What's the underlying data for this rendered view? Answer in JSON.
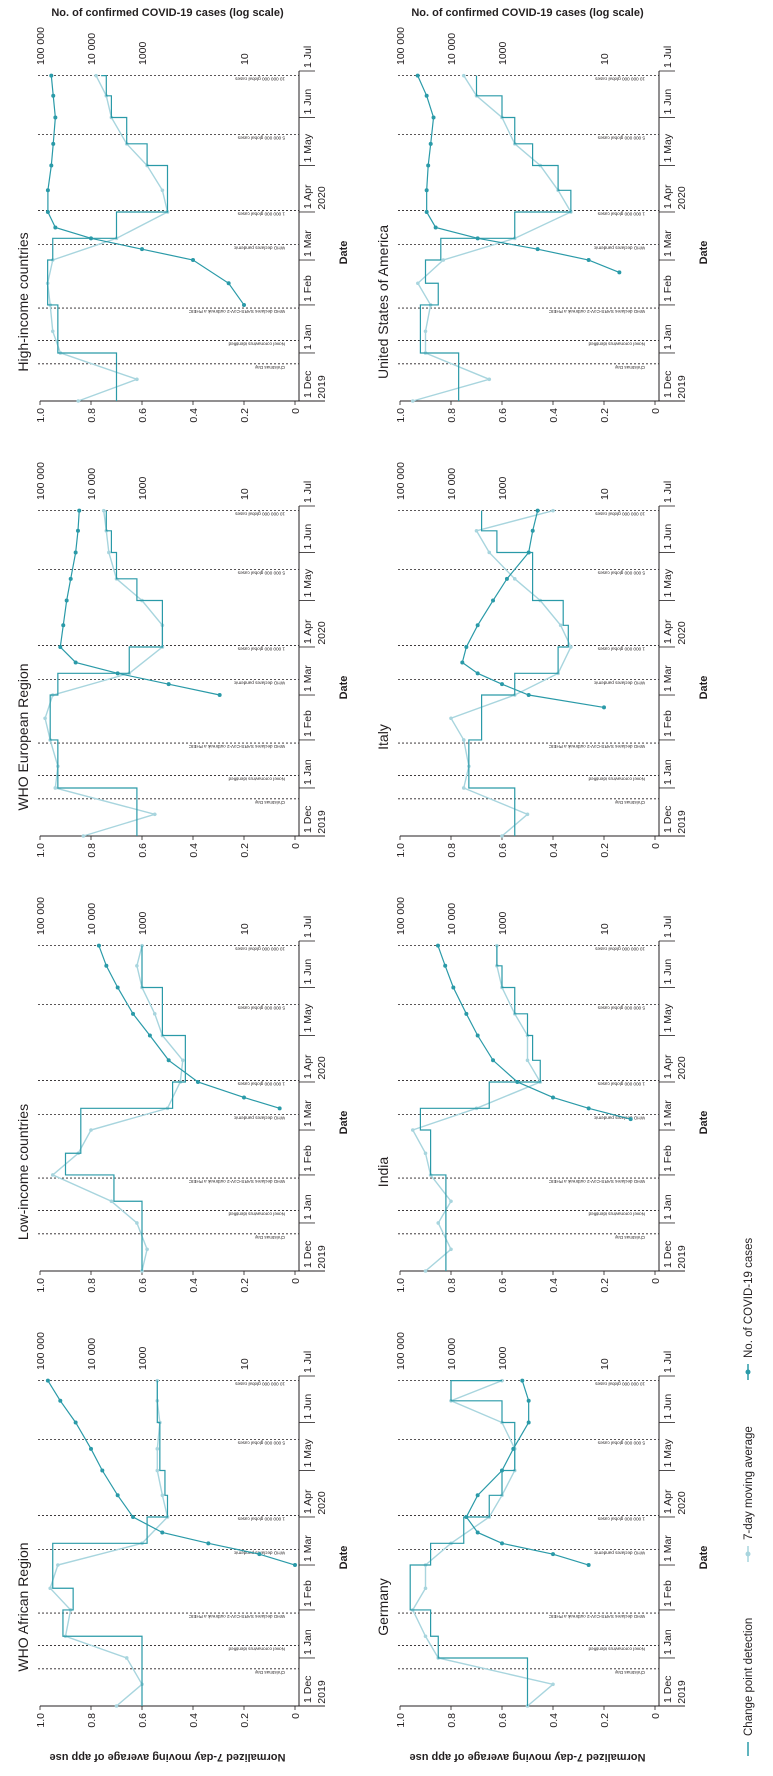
{
  "figure": {
    "ylabel_left": "Normalized 7-day moving average of app use",
    "ylabel_right": "No. of confirmed COVID-19 cases (log scale)",
    "xlabel": "Date",
    "x_ticks": [
      "1 Dec",
      "1 Jan",
      "1 Feb",
      "1 Mar",
      "1 Apr",
      "1 May",
      "1 Jun",
      "1 Jul"
    ],
    "year_labels": [
      "2019",
      "2020"
    ],
    "y_ticks_left": [
      "0",
      "0.2",
      "0.4",
      "0.6",
      "0.8",
      "1.0"
    ],
    "y_ticks_right": [
      "10",
      "1000",
      "10 000",
      "100 000"
    ],
    "events": [
      {
        "label": "Christmas Day",
        "date": "2019-12-25"
      },
      {
        "label": "Novel coronavirus identified",
        "date": "2020-01-09"
      },
      {
        "label": "WHO declares SARS-CoV-2 outbreak a PHEIC",
        "date": "2020-01-30"
      },
      {
        "label": "WHO declares pandemic",
        "date": "2020-03-11"
      },
      {
        "label": "1 000 000 global cases",
        "date": "2020-04-02"
      },
      {
        "label": "5 000 000 global cases",
        "date": "2020-05-21"
      },
      {
        "label": "10 000 000 global cases",
        "date": "2020-06-28"
      }
    ],
    "legend": [
      "Change point detection",
      "7-day moving average",
      "No. of COVID-19 cases"
    ],
    "colors": {
      "dark": "#2a9aa8",
      "light": "#a8d5de",
      "text": "#231f20"
    }
  },
  "chart_data": [
    {
      "type": "line",
      "title": "WHO African Region",
      "x": [
        "2019-12-01",
        "2019-12-15",
        "2020-01-01",
        "2020-01-15",
        "2020-02-01",
        "2020-02-15",
        "2020-03-01",
        "2020-03-15",
        "2020-04-01",
        "2020-04-15",
        "2020-05-01",
        "2020-05-15",
        "2020-06-01",
        "2020-06-15",
        "2020-06-28"
      ],
      "series": [
        {
          "name": "7-day moving average",
          "values": [
            0.7,
            0.6,
            0.66,
            0.9,
            0.88,
            0.96,
            0.93,
            0.6,
            0.5,
            0.52,
            0.54,
            0.54,
            0.53,
            0.54,
            0.54
          ]
        },
        {
          "name": "Change point detection",
          "values": [
            0.6,
            0.6,
            0.6,
            0.91,
            0.87,
            0.95,
            0.95,
            0.58,
            0.5,
            0.51,
            0.53,
            0.53,
            0.54,
            0.54,
            0.54
          ]
        },
        {
          "name": "No. of COVID-19 cases",
          "x": [
            "2020-03-01",
            "2020-03-08",
            "2020-03-15",
            "2020-03-22",
            "2020-04-01",
            "2020-04-15",
            "2020-05-01",
            "2020-05-15",
            "2020-06-01",
            "2020-06-15",
            "2020-06-28"
          ],
          "values": [
            1,
            5,
            50,
            400,
            1500,
            3000,
            6000,
            10000,
            20000,
            40000,
            70000
          ]
        }
      ]
    },
    {
      "type": "line",
      "title": "Low-income countries",
      "x": [
        "2019-12-01",
        "2019-12-15",
        "2020-01-01",
        "2020-01-15",
        "2020-02-01",
        "2020-02-15",
        "2020-03-01",
        "2020-03-15",
        "2020-04-01",
        "2020-04-15",
        "2020-05-01",
        "2020-05-15",
        "2020-06-01",
        "2020-06-15",
        "2020-06-28"
      ],
      "series": [
        {
          "name": "7-day moving average",
          "values": [
            0.6,
            0.58,
            0.62,
            0.72,
            0.95,
            0.85,
            0.8,
            0.5,
            0.45,
            0.44,
            0.52,
            0.55,
            0.6,
            0.62,
            0.6
          ]
        },
        {
          "name": "Change point detection",
          "values": [
            0.6,
            0.6,
            0.6,
            0.71,
            0.9,
            0.84,
            0.84,
            0.48,
            0.43,
            0.43,
            0.52,
            0.52,
            0.6,
            0.6,
            0.6
          ]
        },
        {
          "name": "No. of COVID-19 cases",
          "x": [
            "2020-03-15",
            "2020-03-22",
            "2020-04-01",
            "2020-04-15",
            "2020-05-01",
            "2020-05-15",
            "2020-06-01",
            "2020-06-15",
            "2020-06-28"
          ],
          "values": [
            2,
            10,
            80,
            300,
            700,
            1500,
            3000,
            5000,
            7000
          ]
        }
      ]
    },
    {
      "type": "line",
      "title": "WHO European Region",
      "x": [
        "2019-12-01",
        "2019-12-15",
        "2020-01-01",
        "2020-01-15",
        "2020-02-01",
        "2020-02-15",
        "2020-03-01",
        "2020-03-15",
        "2020-04-01",
        "2020-04-15",
        "2020-05-01",
        "2020-05-15",
        "2020-06-01",
        "2020-06-15",
        "2020-06-28"
      ],
      "series": [
        {
          "name": "7-day moving average",
          "values": [
            0.83,
            0.55,
            0.94,
            0.93,
            0.96,
            0.98,
            0.95,
            0.65,
            0.52,
            0.52,
            0.6,
            0.7,
            0.73,
            0.74,
            0.75
          ]
        },
        {
          "name": "Change point detection",
          "values": [
            0.62,
            0.62,
            0.93,
            0.93,
            0.96,
            0.96,
            0.93,
            0.65,
            0.52,
            0.52,
            0.62,
            0.7,
            0.72,
            0.74,
            0.74
          ]
        },
        {
          "name": "No. of COVID-19 cases",
          "x": [
            "2020-03-01",
            "2020-03-08",
            "2020-03-15",
            "2020-03-22",
            "2020-04-01",
            "2020-04-15",
            "2020-05-01",
            "2020-05-15",
            "2020-06-01",
            "2020-06-15",
            "2020-06-28"
          ],
          "values": [
            30,
            300,
            3000,
            20000,
            40000,
            35000,
            30000,
            25000,
            20000,
            18000,
            17000
          ]
        }
      ]
    },
    {
      "type": "line",
      "title": "High-income countries",
      "x": [
        "2019-12-01",
        "2019-12-15",
        "2020-01-01",
        "2020-01-15",
        "2020-02-01",
        "2020-02-15",
        "2020-03-01",
        "2020-03-15",
        "2020-04-01",
        "2020-04-15",
        "2020-05-01",
        "2020-05-15",
        "2020-06-01",
        "2020-06-15",
        "2020-06-28"
      ],
      "series": [
        {
          "name": "7-day moving average",
          "values": [
            0.85,
            0.62,
            0.92,
            0.95,
            0.96,
            0.97,
            0.95,
            0.7,
            0.5,
            0.52,
            0.58,
            0.66,
            0.72,
            0.74,
            0.78
          ]
        },
        {
          "name": "Change point detection",
          "values": [
            0.7,
            0.7,
            0.93,
            0.93,
            0.97,
            0.97,
            0.95,
            0.7,
            0.5,
            0.5,
            0.58,
            0.66,
            0.72,
            0.74,
            0.76
          ]
        },
        {
          "name": "No. of COVID-19 cases",
          "x": [
            "2020-02-01",
            "2020-02-15",
            "2020-03-01",
            "2020-03-08",
            "2020-03-15",
            "2020-03-22",
            "2020-04-01",
            "2020-04-15",
            "2020-05-01",
            "2020-05-15",
            "2020-06-01",
            "2020-06-15",
            "2020-06-28"
          ],
          "values": [
            10,
            20,
            100,
            1000,
            10000,
            50000,
            70000,
            70000,
            60000,
            55000,
            50000,
            55000,
            60000
          ]
        }
      ]
    },
    {
      "type": "line",
      "title": "Germany",
      "x": [
        "2019-12-01",
        "2019-12-15",
        "2020-01-01",
        "2020-01-15",
        "2020-02-01",
        "2020-02-15",
        "2020-03-01",
        "2020-03-15",
        "2020-04-01",
        "2020-04-15",
        "2020-05-01",
        "2020-05-15",
        "2020-06-01",
        "2020-06-15",
        "2020-06-28"
      ],
      "series": [
        {
          "name": "7-day moving average",
          "values": [
            0.5,
            0.4,
            0.85,
            0.9,
            0.95,
            0.9,
            0.9,
            0.8,
            0.65,
            0.6,
            0.55,
            0.55,
            0.6,
            0.8,
            0.6
          ]
        },
        {
          "name": "Change point detection",
          "values": [
            0.5,
            0.5,
            0.85,
            0.88,
            0.96,
            0.96,
            0.88,
            0.75,
            0.65,
            0.6,
            0.55,
            0.55,
            0.6,
            0.8,
            0.6
          ]
        },
        {
          "name": "No. of COVID-19 cases",
          "x": [
            "2020-03-01",
            "2020-03-08",
            "2020-03-15",
            "2020-03-22",
            "2020-04-01",
            "2020-04-15",
            "2020-05-01",
            "2020-05-15",
            "2020-06-01",
            "2020-06-15",
            "2020-06-28"
          ],
          "values": [
            20,
            100,
            1000,
            3000,
            5000,
            3000,
            1000,
            600,
            300,
            300,
            400
          ]
        }
      ]
    },
    {
      "type": "line",
      "title": "India",
      "x": [
        "2019-12-01",
        "2019-12-15",
        "2020-01-01",
        "2020-01-15",
        "2020-02-01",
        "2020-02-15",
        "2020-03-01",
        "2020-03-15",
        "2020-04-01",
        "2020-04-15",
        "2020-05-01",
        "2020-05-15",
        "2020-06-01",
        "2020-06-15",
        "2020-06-28"
      ],
      "series": [
        {
          "name": "7-day moving average",
          "values": [
            0.9,
            0.8,
            0.85,
            0.8,
            0.88,
            0.9,
            0.95,
            0.7,
            0.45,
            0.5,
            0.5,
            0.55,
            0.6,
            0.62,
            0.62
          ]
        },
        {
          "name": "Change point detection",
          "values": [
            0.82,
            0.82,
            0.82,
            0.82,
            0.88,
            0.88,
            0.92,
            0.65,
            0.45,
            0.48,
            0.5,
            0.55,
            0.6,
            0.62,
            0.62
          ]
        },
        {
          "name": "No. of COVID-19 cases",
          "x": [
            "2020-03-08",
            "2020-03-15",
            "2020-03-22",
            "2020-04-01",
            "2020-04-15",
            "2020-05-01",
            "2020-05-15",
            "2020-06-01",
            "2020-06-15",
            "2020-06-28"
          ],
          "values": [
            3,
            20,
            100,
            500,
            1500,
            3000,
            5000,
            9000,
            13000,
            18000
          ]
        }
      ]
    },
    {
      "type": "line",
      "title": "Italy",
      "x": [
        "2019-12-01",
        "2019-12-15",
        "2020-01-01",
        "2020-01-15",
        "2020-02-01",
        "2020-02-15",
        "2020-03-01",
        "2020-03-15",
        "2020-04-01",
        "2020-04-15",
        "2020-05-01",
        "2020-05-15",
        "2020-06-01",
        "2020-06-15",
        "2020-06-28"
      ],
      "series": [
        {
          "name": "7-day moving average",
          "values": [
            0.6,
            0.5,
            0.75,
            0.73,
            0.75,
            0.8,
            0.55,
            0.38,
            0.33,
            0.37,
            0.45,
            0.55,
            0.65,
            0.7,
            0.4
          ]
        },
        {
          "name": "Change point detection",
          "values": [
            0.55,
            0.55,
            0.73,
            0.73,
            0.68,
            0.68,
            0.55,
            0.38,
            0.34,
            0.36,
            0.48,
            0.48,
            0.62,
            0.68,
            0.68
          ]
        },
        {
          "name": "No. of COVID-19 cases",
          "x": [
            "2020-02-22",
            "2020-03-01",
            "2020-03-08",
            "2020-03-15",
            "2020-03-22",
            "2020-04-01",
            "2020-04-15",
            "2020-05-01",
            "2020-05-15",
            "2020-06-01",
            "2020-06-15",
            "2020-06-28"
          ],
          "values": [
            10,
            300,
            1000,
            3000,
            6000,
            5000,
            3000,
            1500,
            800,
            300,
            250,
            200
          ]
        }
      ]
    },
    {
      "type": "line",
      "title": "United States of America",
      "x": [
        "2019-12-01",
        "2019-12-15",
        "2020-01-01",
        "2020-01-15",
        "2020-02-01",
        "2020-02-15",
        "2020-03-01",
        "2020-03-15",
        "2020-04-01",
        "2020-04-15",
        "2020-05-01",
        "2020-05-15",
        "2020-06-01",
        "2020-06-15",
        "2020-06-28"
      ],
      "series": [
        {
          "name": "7-day moving average",
          "values": [
            0.95,
            0.65,
            0.9,
            0.9,
            0.88,
            0.93,
            0.83,
            0.55,
            0.33,
            0.38,
            0.45,
            0.55,
            0.6,
            0.7,
            0.75
          ]
        },
        {
          "name": "Change point detection",
          "values": [
            0.77,
            0.77,
            0.92,
            0.92,
            0.85,
            0.9,
            0.84,
            0.55,
            0.33,
            0.38,
            0.48,
            0.55,
            0.6,
            0.7,
            0.7
          ]
        },
        {
          "name": "No. of COVID-19 cases",
          "x": [
            "2020-02-22",
            "2020-03-01",
            "2020-03-08",
            "2020-03-15",
            "2020-03-22",
            "2020-04-01",
            "2020-04-15",
            "2020-05-01",
            "2020-05-15",
            "2020-06-01",
            "2020-06-15",
            "2020-06-28"
          ],
          "values": [
            5,
            20,
            200,
            3000,
            20000,
            30000,
            30000,
            28000,
            25000,
            22000,
            30000,
            45000
          ]
        }
      ]
    }
  ]
}
